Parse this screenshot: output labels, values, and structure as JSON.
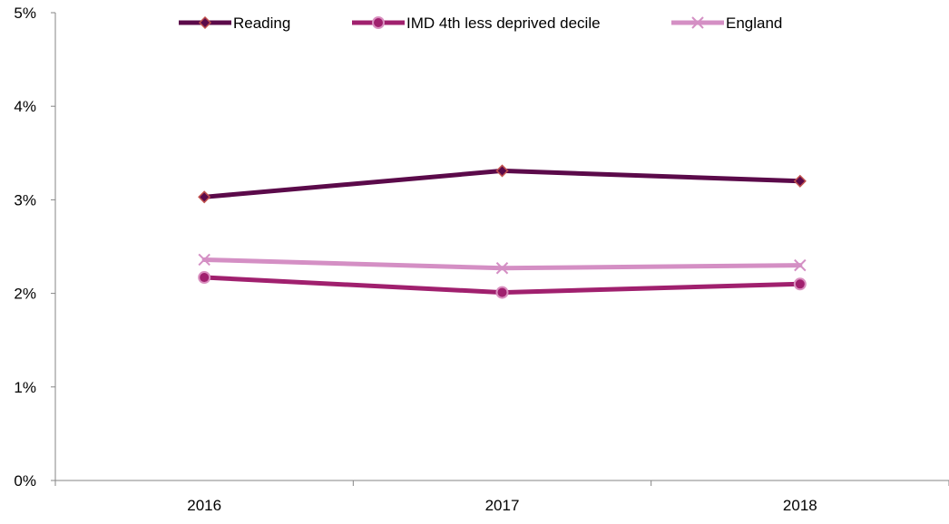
{
  "chart_data": {
    "type": "line",
    "title": "",
    "xlabel": "",
    "ylabel": "",
    "categories": [
      "2016",
      "2017",
      "2018"
    ],
    "ylim": [
      0,
      0.05
    ],
    "yticks": [
      0,
      0.01,
      0.02,
      0.03,
      0.04,
      0.05
    ],
    "ytick_labels": [
      "0%",
      "1%",
      "2%",
      "3%",
      "4%",
      "5%"
    ],
    "grid": false,
    "legend_position": "top",
    "series": [
      {
        "name": "Reading",
        "values": [
          0.0303,
          0.0331,
          0.032
        ],
        "color": "#5b0a4a",
        "marker": "diamond",
        "marker_fill": "#5b0a4a",
        "marker_stroke": "#c0504d"
      },
      {
        "name": "IMD 4th less deprived decile",
        "values": [
          0.0217,
          0.0201,
          0.021
        ],
        "color": "#a0206e",
        "marker": "circle",
        "marker_fill": "#a0206e",
        "marker_stroke": "#d98fbf"
      },
      {
        "name": "England",
        "values": [
          0.0236,
          0.0227,
          0.023
        ],
        "color": "#d48fc4",
        "marker": "x",
        "marker_fill": "#d48fc4",
        "marker_stroke": "#d48fc4"
      }
    ]
  }
}
